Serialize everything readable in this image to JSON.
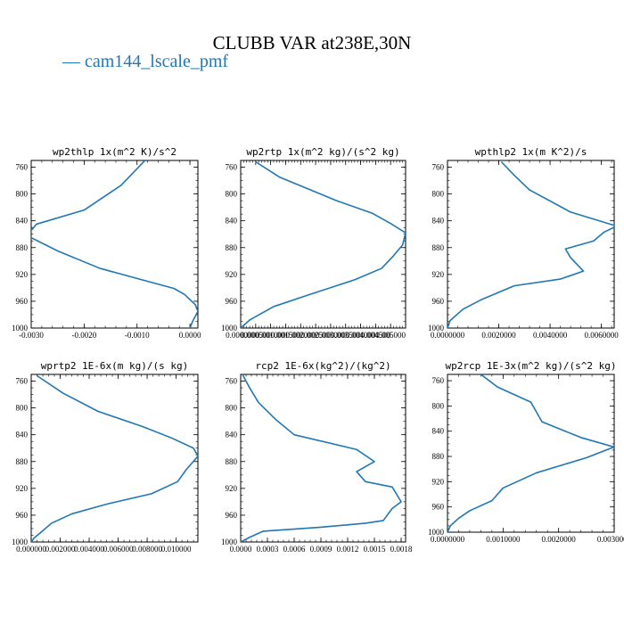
{
  "title": "CLUBB VAR at238E,30N",
  "legend_text": "— cam144_lscale_pmf",
  "colors": {
    "line": "#1f77b4",
    "axis": "#000000",
    "text": "#000000"
  },
  "chart_data": [
    {
      "type": "line",
      "title": "wp2thlp  1x(m^2 K)/s^2",
      "ylim": [
        1000,
        750
      ],
      "yticks": [
        760,
        800,
        840,
        880,
        920,
        960,
        1000
      ],
      "xlim": [
        -0.003,
        0.00015
      ],
      "xticks": [
        -0.003,
        -0.002,
        -0.001,
        0.0
      ],
      "xtick_labels": [
        "-0.0030",
        "-0.0020",
        "-0.0010",
        "0.0000"
      ],
      "series": [
        {
          "name": "cam144_lscale_pmf",
          "points": [
            [
              -0.00085,
              750
            ],
            [
              -0.0013,
              787
            ],
            [
              -0.002,
              824
            ],
            [
              -0.0029,
              845
            ],
            [
              -0.00308,
              862
            ],
            [
              -0.0025,
              885
            ],
            [
              -0.0017,
              911
            ],
            [
              -0.001,
              926
            ],
            [
              -0.0003,
              941
            ],
            [
              -0.0001,
              950
            ],
            [
              0.0001,
              965
            ],
            [
              0.00015,
              975
            ],
            [
              5e-05,
              990
            ],
            [
              0.0,
              1000
            ]
          ]
        }
      ]
    },
    {
      "type": "line",
      "title": "wp2rtp  1x(m^2 kg)/(s^2 kg)",
      "ylim": [
        1000,
        750
      ],
      "yticks": [
        760,
        800,
        840,
        880,
        920,
        960,
        1000
      ],
      "xlim": [
        0.0,
        0.0055
      ],
      "xticks": [
        0.0,
        0.0005,
        0.001,
        0.0015,
        0.002,
        0.0025,
        0.003,
        0.0035,
        0.004,
        0.0045,
        0.005
      ],
      "xtick_labels": [
        "0.000000",
        "0.000500",
        "0.001000",
        "0.001500",
        "0.002000",
        "0.002500",
        "0.003000",
        "0.003500",
        "0.004000",
        "0.004500",
        "0.005000"
      ],
      "series": [
        {
          "name": "cam144_lscale_pmf",
          "points": [
            [
              0.0005,
              752
            ],
            [
              0.0013,
              775
            ],
            [
              0.0032,
              810
            ],
            [
              0.0044,
              829
            ],
            [
              0.005,
              844
            ],
            [
              0.0055,
              858
            ],
            [
              0.0054,
              876
            ],
            [
              0.0051,
              892
            ],
            [
              0.0047,
              911
            ],
            [
              0.0038,
              928
            ],
            [
              0.0023,
              950
            ],
            [
              0.0011,
              968
            ],
            [
              0.0003,
              988
            ],
            [
              0.0,
              1000
            ]
          ]
        }
      ]
    },
    {
      "type": "line",
      "title": "wpthlp2  1x(m K^2)/s",
      "ylim": [
        1000,
        750
      ],
      "yticks": [
        760,
        800,
        840,
        880,
        920,
        960,
        1000
      ],
      "xlim": [
        0.0,
        0.0065
      ],
      "xticks": [
        0.0,
        0.002,
        0.004,
        0.006
      ],
      "xtick_labels": [
        "0.0000000",
        "0.0020000",
        "0.0040000",
        "0.0060000"
      ],
      "series": [
        {
          "name": "cam144_lscale_pmf",
          "points": [
            [
              0.0021,
              752
            ],
            [
              0.0026,
              772
            ],
            [
              0.0032,
              794
            ],
            [
              0.0048,
              827
            ],
            [
              0.0066,
              848
            ],
            [
              0.0061,
              857
            ],
            [
              0.0057,
              870
            ],
            [
              0.0046,
              882
            ],
            [
              0.0048,
              895
            ],
            [
              0.0053,
              915
            ],
            [
              0.0044,
              927
            ],
            [
              0.0026,
              937
            ],
            [
              0.0013,
              958
            ],
            [
              0.0006,
              972
            ],
            [
              0.0001,
              989
            ],
            [
              0.0,
              1000
            ]
          ]
        }
      ]
    },
    {
      "type": "line",
      "title": "wprtp2  1E-6x(m kg)/(s kg)",
      "ylim": [
        1000,
        750
      ],
      "yticks": [
        760,
        800,
        840,
        880,
        920,
        960,
        1000
      ],
      "xlim": [
        0.0,
        0.0115
      ],
      "xticks": [
        0.0,
        0.002,
        0.004,
        0.006,
        0.008,
        0.01
      ],
      "xtick_labels": [
        "0.000000",
        "0.002000",
        "0.004000",
        "0.006000",
        "0.008000",
        "0.010000"
      ],
      "series": [
        {
          "name": "cam144_lscale_pmf",
          "points": [
            [
              0.0004,
              752
            ],
            [
              0.0022,
              778
            ],
            [
              0.0046,
              805
            ],
            [
              0.0077,
              828
            ],
            [
              0.0097,
              845
            ],
            [
              0.0112,
              860
            ],
            [
              0.0115,
              872
            ],
            [
              0.0107,
              892
            ],
            [
              0.0101,
              910
            ],
            [
              0.0083,
              928
            ],
            [
              0.0053,
              943
            ],
            [
              0.0028,
              958
            ],
            [
              0.0014,
              972
            ],
            [
              0.0007,
              985
            ],
            [
              0.0002,
              994
            ],
            [
              0.0,
              1000
            ]
          ]
        }
      ]
    },
    {
      "type": "line",
      "title": "rcp2  1E-6x(kg^2)/(kg^2)",
      "ylim": [
        1000,
        750
      ],
      "yticks": [
        760,
        800,
        840,
        880,
        920,
        960,
        1000
      ],
      "xlim": [
        0.0,
        0.00185
      ],
      "xticks": [
        0.0,
        0.0003,
        0.0006,
        0.0009,
        0.0012,
        0.0015,
        0.0018
      ],
      "xtick_labels": [
        "0.0000",
        "0.0003",
        "0.0006",
        "0.0009",
        "0.0012",
        "0.0015",
        "0.0018"
      ],
      "series": [
        {
          "name": "cam144_lscale_pmf",
          "points": [
            [
              2e-05,
              750
            ],
            [
              0.0001,
              770
            ],
            [
              0.0002,
              792
            ],
            [
              0.0004,
              818
            ],
            [
              0.0006,
              840
            ],
            [
              0.0013,
              862
            ],
            [
              0.0015,
              880
            ],
            [
              0.0013,
              895
            ],
            [
              0.0014,
              910
            ],
            [
              0.0017,
              918
            ],
            [
              0.0018,
              940
            ],
            [
              0.0017,
              950
            ],
            [
              0.0016,
              968
            ],
            [
              0.0014,
              972
            ],
            [
              0.0009,
              978
            ],
            [
              0.00025,
              984
            ],
            [
              0.0001,
              993
            ],
            [
              0.0,
              1000
            ]
          ]
        }
      ]
    },
    {
      "type": "line",
      "title": "wp2rcp  1E-3x(m^2 kg)/(s^2 kg)",
      "ylim": [
        1000,
        750
      ],
      "yticks": [
        760,
        800,
        840,
        880,
        920,
        960,
        1000
      ],
      "xlim": [
        0.0,
        0.003
      ],
      "xticks": [
        0.0,
        0.001,
        0.002,
        0.003
      ],
      "xtick_labels": [
        "0.0000000",
        "0.0010000",
        "0.0020000",
        "0.0030000"
      ],
      "series": [
        {
          "name": "cam144_lscale_pmf",
          "points": [
            [
              0.0006,
              750
            ],
            [
              0.0009,
              770
            ],
            [
              0.0015,
              794
            ],
            [
              0.0017,
              825
            ],
            [
              0.0024,
              850
            ],
            [
              0.003,
              865
            ],
            [
              0.0025,
              882
            ],
            [
              0.0016,
              906
            ],
            [
              0.001,
              930
            ],
            [
              0.0008,
              950
            ],
            [
              0.0004,
              966
            ],
            [
              0.0002,
              978
            ],
            [
              5e-05,
              990
            ],
            [
              0.0,
              1000
            ]
          ]
        }
      ]
    }
  ]
}
